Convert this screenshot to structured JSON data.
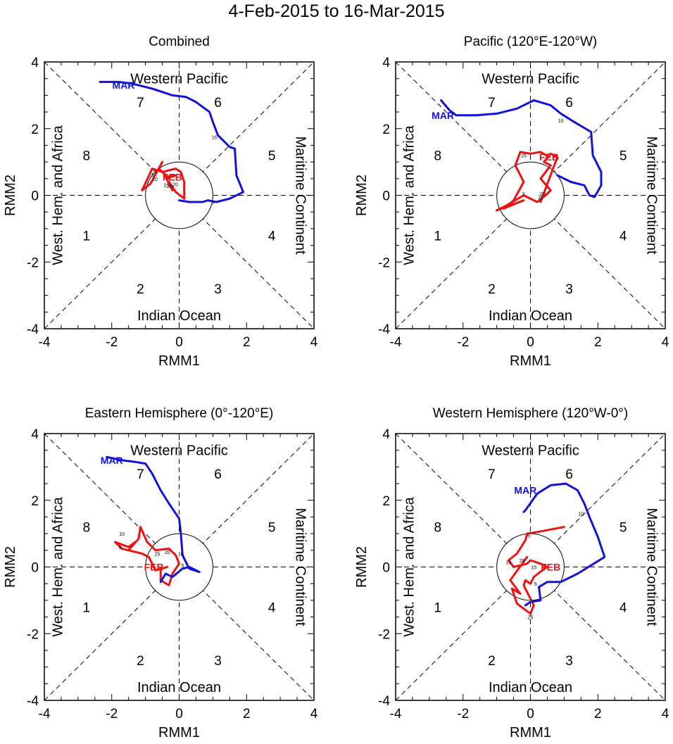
{
  "title": "4-Feb-2015 to 16-Mar-2015",
  "colors": {
    "feb": "#ee1111",
    "mar": "#1111dd",
    "axis": "#000000"
  },
  "region_labels": {
    "top": "Western Pacific",
    "bottom": "Indian Ocean",
    "left": "West. Hem. and Africa",
    "right": "Maritime Continent"
  },
  "chart_data": [
    {
      "type": "line",
      "title": "Combined",
      "xlabel": "RMM1",
      "ylabel": "RMM2",
      "xlim": [
        -4,
        4
      ],
      "ylim": [
        -4,
        4
      ],
      "ticks": [
        -4,
        -2,
        0,
        2,
        4
      ],
      "phase_labels": [
        "1",
        "2",
        "3",
        "4",
        "5",
        "6",
        "7",
        "8"
      ],
      "month_labels": [
        {
          "text": "FEB",
          "x": -0.2,
          "y": 0.55,
          "series": "feb"
        },
        {
          "text": "MAR",
          "x": -1.65,
          "y": 3.3,
          "series": "mar"
        }
      ],
      "day_labels": [
        {
          "text": "5",
          "x": -0.78,
          "y": 0.62
        },
        {
          "text": "10",
          "x": -0.72,
          "y": 0.5
        },
        {
          "text": "15",
          "x": -0.38,
          "y": 0.32
        },
        {
          "text": "20",
          "x": -0.12,
          "y": 0.34
        },
        {
          "text": "25",
          "x": -0.28,
          "y": 0.28
        },
        {
          "text": "10",
          "x": 1.05,
          "y": 1.75
        },
        {
          "text": "5",
          "x": 1.0,
          "y": -0.2
        }
      ],
      "series": [
        {
          "name": "feb",
          "points": [
            [
              -0.3,
              0.5
            ],
            [
              -0.6,
              0.8
            ],
            [
              -0.5,
              1.0
            ],
            [
              -0.85,
              0.35
            ],
            [
              -1.1,
              0.15
            ],
            [
              -0.8,
              0.8
            ],
            [
              -0.5,
              0.7
            ],
            [
              -0.1,
              0.8
            ],
            [
              0.05,
              0.7
            ],
            [
              0.15,
              0.4
            ],
            [
              0.15,
              -0.1
            ],
            [
              -0.1,
              0.1
            ],
            [
              -0.3,
              0.4
            ],
            [
              -0.2,
              0.15
            ],
            [
              -0.4,
              0.55
            ],
            [
              -0.1,
              0.6
            ]
          ]
        },
        {
          "name": "mar",
          "points": [
            [
              0.0,
              -0.15
            ],
            [
              0.3,
              -0.2
            ],
            [
              0.7,
              -0.2
            ],
            [
              0.85,
              -0.15
            ],
            [
              1.1,
              -0.2
            ],
            [
              1.5,
              -0.1
            ],
            [
              1.9,
              0.1
            ],
            [
              1.7,
              0.6
            ],
            [
              1.65,
              1.4
            ],
            [
              1.5,
              1.45
            ],
            [
              1.15,
              1.8
            ],
            [
              1.0,
              2.2
            ],
            [
              0.9,
              2.5
            ],
            [
              0.5,
              2.8
            ],
            [
              0.2,
              2.95
            ],
            [
              -0.2,
              3.0
            ],
            [
              -0.8,
              3.2
            ],
            [
              -1.4,
              3.35
            ],
            [
              -1.8,
              3.4
            ],
            [
              -2.35,
              3.4
            ]
          ]
        }
      ]
    },
    {
      "type": "line",
      "title": "Pacific (120°E-120°W)",
      "xlabel": "RMM1",
      "ylabel": "RMM2",
      "xlim": [
        -4,
        4
      ],
      "ylim": [
        -4,
        4
      ],
      "ticks": [
        -4,
        -2,
        0,
        2,
        4
      ],
      "phase_labels": [
        "1",
        "2",
        "3",
        "4",
        "5",
        "6",
        "7",
        "8"
      ],
      "month_labels": [
        {
          "text": "FEB",
          "x": 0.55,
          "y": 1.15,
          "series": "feb"
        },
        {
          "text": "MAR",
          "x": -2.6,
          "y": 2.4,
          "series": "mar"
        }
      ],
      "day_labels": [
        {
          "text": "25",
          "x": -0.2,
          "y": 1.2
        },
        {
          "text": "5",
          "x": -0.2,
          "y": 0.05
        },
        {
          "text": "20",
          "x": 0.35,
          "y": 0.05
        },
        {
          "text": "10",
          "x": 0.3,
          "y": -0.05
        },
        {
          "text": "10",
          "x": 0.9,
          "y": 2.25
        }
      ],
      "series": [
        {
          "name": "feb",
          "points": [
            [
              0.55,
              1.15
            ],
            [
              0.3,
              1.3
            ],
            [
              0.0,
              1.25
            ],
            [
              -0.3,
              1.3
            ],
            [
              -0.45,
              0.9
            ],
            [
              -0.2,
              0.4
            ],
            [
              -0.5,
              -0.15
            ],
            [
              -0.8,
              -0.4
            ],
            [
              -0.2,
              -0.15
            ],
            [
              -1.0,
              -0.45
            ],
            [
              -0.7,
              -0.3
            ],
            [
              -0.2,
              0.0
            ],
            [
              0.2,
              -0.2
            ],
            [
              0.45,
              0.0
            ],
            [
              0.6,
              0.15
            ],
            [
              0.3,
              0.5
            ],
            [
              0.6,
              0.9
            ],
            [
              0.4,
              1.0
            ],
            [
              0.6,
              1.25
            ],
            [
              0.8,
              1.15
            ],
            [
              0.3,
              -0.2
            ]
          ]
        },
        {
          "name": "mar",
          "points": [
            [
              0.8,
              0.6
            ],
            [
              1.2,
              0.4
            ],
            [
              1.6,
              0.3
            ],
            [
              1.75,
              0.0
            ],
            [
              1.9,
              -0.05
            ],
            [
              2.1,
              0.3
            ],
            [
              2.1,
              0.7
            ],
            [
              1.85,
              1.2
            ],
            [
              1.8,
              1.9
            ],
            [
              1.3,
              2.2
            ],
            [
              0.9,
              2.45
            ],
            [
              0.6,
              2.7
            ],
            [
              0.1,
              2.85
            ],
            [
              -0.4,
              2.6
            ],
            [
              -1.0,
              2.45
            ],
            [
              -1.6,
              2.4
            ],
            [
              -2.2,
              2.4
            ],
            [
              -2.4,
              2.55
            ],
            [
              -2.65,
              2.85
            ]
          ]
        }
      ]
    },
    {
      "type": "line",
      "title": "Eastern Hemisphere (0°-120°E)",
      "xlabel": "RMM1",
      "ylabel": "RMM2",
      "xlim": [
        -4,
        4
      ],
      "ylim": [
        -4,
        4
      ],
      "ticks": [
        -4,
        -2,
        0,
        2,
        4
      ],
      "phase_labels": [
        "1",
        "2",
        "3",
        "4",
        "5",
        "6",
        "7",
        "8"
      ],
      "month_labels": [
        {
          "text": "FEB",
          "x": -0.75,
          "y": 0.0,
          "series": "feb"
        },
        {
          "text": "MAR",
          "x": -2.0,
          "y": 3.2,
          "series": "mar"
        }
      ],
      "day_labels": [
        {
          "text": "10",
          "x": -1.7,
          "y": 1.0
        },
        {
          "text": "5",
          "x": -1.75,
          "y": 0.6
        },
        {
          "text": "25",
          "x": -0.65,
          "y": 0.4
        },
        {
          "text": "20",
          "x": -0.35,
          "y": 0.45
        },
        {
          "text": "10",
          "x": 0.05,
          "y": 0.4
        },
        {
          "text": "5",
          "x": 0.1,
          "y": 0.05
        }
      ],
      "series": [
        {
          "name": "feb",
          "points": [
            [
              -0.35,
              0.0
            ],
            [
              -0.7,
              -0.1
            ],
            [
              -0.9,
              0.3
            ],
            [
              -1.1,
              0.4
            ],
            [
              -1.5,
              0.5
            ],
            [
              -1.3,
              0.75
            ],
            [
              -1.5,
              0.6
            ],
            [
              -1.9,
              0.75
            ],
            [
              -1.7,
              0.55
            ],
            [
              -1.5,
              0.5
            ],
            [
              -1.2,
              0.85
            ],
            [
              -1.15,
              1.2
            ],
            [
              -0.95,
              0.75
            ],
            [
              -0.7,
              0.5
            ],
            [
              -0.3,
              0.55
            ],
            [
              -0.1,
              0.35
            ],
            [
              0.0,
              0.1
            ],
            [
              -0.2,
              -0.2
            ],
            [
              -0.3,
              -0.55
            ],
            [
              -0.55,
              -0.4
            ],
            [
              -0.55,
              -0.1
            ]
          ]
        },
        {
          "name": "mar",
          "points": [
            [
              -0.55,
              -0.45
            ],
            [
              -0.4,
              -0.2
            ],
            [
              -0.2,
              -0.3
            ],
            [
              0.1,
              -0.05
            ],
            [
              0.3,
              0.0
            ],
            [
              0.6,
              -0.15
            ],
            [
              0.3,
              -0.05
            ],
            [
              0.1,
              0.35
            ],
            [
              0.05,
              1.0
            ],
            [
              0.0,
              1.45
            ],
            [
              -0.3,
              1.9
            ],
            [
              -0.55,
              2.3
            ],
            [
              -0.8,
              2.8
            ],
            [
              -1.0,
              3.1
            ],
            [
              -1.3,
              3.15
            ],
            [
              -1.7,
              3.2
            ],
            [
              -2.15,
              3.3
            ]
          ]
        }
      ]
    },
    {
      "type": "line",
      "title": "Western Hemisphere (120°W-0°)",
      "xlabel": "RMM1",
      "ylabel": "RMM2",
      "xlim": [
        -4,
        4
      ],
      "ylim": [
        -4,
        4
      ],
      "ticks": [
        -4,
        -2,
        0,
        2,
        4
      ],
      "phase_labels": [
        "1",
        "2",
        "3",
        "4",
        "5",
        "6",
        "7",
        "8"
      ],
      "month_labels": [
        {
          "text": "FEB",
          "x": 0.6,
          "y": 0.0,
          "series": "feb"
        },
        {
          "text": "MAR",
          "x": -0.15,
          "y": 2.3,
          "series": "mar"
        }
      ],
      "day_labels": [
        {
          "text": "5",
          "x": -0.05,
          "y": 0.95
        },
        {
          "text": "10",
          "x": -0.65,
          "y": 0.15
        },
        {
          "text": "20",
          "x": -0.25,
          "y": 0.2
        },
        {
          "text": "15",
          "x": 0.1,
          "y": 0.0
        },
        {
          "text": "25",
          "x": 0.0,
          "y": -1.5
        },
        {
          "text": "5",
          "x": 0.15,
          "y": -0.5
        },
        {
          "text": "10",
          "x": 1.5,
          "y": 1.6
        }
      ],
      "series": [
        {
          "name": "feb",
          "points": [
            [
              1.0,
              1.2
            ],
            [
              0.2,
              1.05
            ],
            [
              -0.1,
              1.0
            ],
            [
              -0.15,
              0.8
            ],
            [
              -0.4,
              0.4
            ],
            [
              -0.65,
              0.2
            ],
            [
              -0.5,
              0.0
            ],
            [
              -0.1,
              0.1
            ],
            [
              0.0,
              0.2
            ],
            [
              0.3,
              0.1
            ],
            [
              0.5,
              0.0
            ],
            [
              0.35,
              -0.1
            ],
            [
              0.1,
              -0.3
            ],
            [
              0.0,
              -0.5
            ],
            [
              -0.15,
              -0.4
            ],
            [
              -0.2,
              -0.55
            ],
            [
              0.1,
              -1.15
            ],
            [
              0.0,
              -1.4
            ],
            [
              -0.4,
              -1.1
            ],
            [
              -0.55,
              -0.65
            ],
            [
              -0.3,
              -0.8
            ],
            [
              -0.6,
              -0.4
            ],
            [
              -0.1,
              0.3
            ]
          ]
        },
        {
          "name": "mar",
          "points": [
            [
              -0.15,
              -1.15
            ],
            [
              0.0,
              -1.05
            ],
            [
              0.3,
              -1.0
            ],
            [
              0.25,
              -0.6
            ],
            [
              0.5,
              -0.45
            ],
            [
              0.9,
              -0.45
            ],
            [
              1.4,
              -0.2
            ],
            [
              2.2,
              0.3
            ],
            [
              2.0,
              0.9
            ],
            [
              1.75,
              1.5
            ],
            [
              1.6,
              1.9
            ],
            [
              1.4,
              2.3
            ],
            [
              1.05,
              2.5
            ],
            [
              0.6,
              2.45
            ],
            [
              0.2,
              2.2
            ],
            [
              -0.15,
              1.7
            ],
            [
              -0.2,
              1.65
            ]
          ]
        }
      ]
    }
  ]
}
